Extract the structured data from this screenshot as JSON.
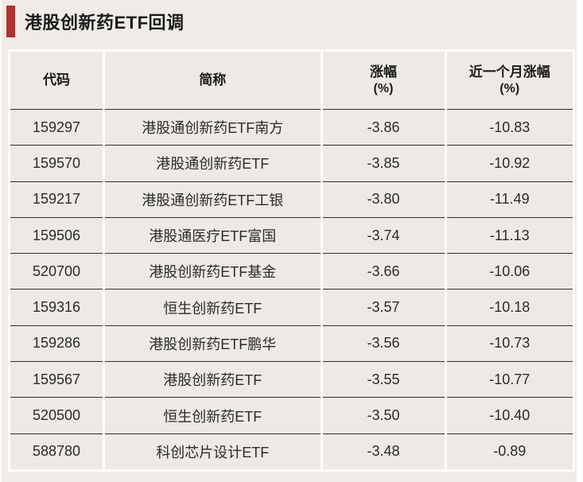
{
  "title": "港股创新药ETF回调",
  "colors": {
    "accent_bar": "#b0342f",
    "page_background": "#efece8",
    "cell_background": "#edeae6",
    "gutter_white": "#fcfcfa",
    "row_separator": "#2f2d2a",
    "title_text": "#1a1a1a",
    "cell_text": "#2b2b2b"
  },
  "table": {
    "headers": [
      {
        "label": "代码",
        "unit": ""
      },
      {
        "label": "简称",
        "unit": ""
      },
      {
        "label": "涨幅",
        "unit": "(%)"
      },
      {
        "label": "近一个月涨幅",
        "unit": "(%)"
      }
    ],
    "rows": [
      {
        "code": "159297",
        "name": "港股通创新药ETF南方",
        "change": "-3.86",
        "month_change": "-10.83"
      },
      {
        "code": "159570",
        "name": "港股通创新药ETF",
        "change": "-3.85",
        "month_change": "-10.92"
      },
      {
        "code": "159217",
        "name": "港股通创新药ETF工银",
        "change": "-3.80",
        "month_change": "-11.49"
      },
      {
        "code": "159506",
        "name": "港股通医疗ETF富国",
        "change": "-3.74",
        "month_change": "-11.13"
      },
      {
        "code": "520700",
        "name": "港股创新药ETF基金",
        "change": "-3.66",
        "month_change": "-10.06"
      },
      {
        "code": "159316",
        "name": "恒生创新药ETF",
        "change": "-3.57",
        "month_change": "-10.18"
      },
      {
        "code": "159286",
        "name": "港股创新药ETF鹏华",
        "change": "-3.56",
        "month_change": "-10.73"
      },
      {
        "code": "159567",
        "name": "港股创新药ETF",
        "change": "-3.55",
        "month_change": "-10.77"
      },
      {
        "code": "520500",
        "name": "恒生创新药ETF",
        "change": "-3.50",
        "month_change": "-10.40"
      },
      {
        "code": "588780",
        "name": "科创芯片设计ETF",
        "change": "-3.48",
        "month_change": "-0.89"
      }
    ]
  },
  "chart_data": {
    "type": "table",
    "title": "港股创新药ETF回调",
    "columns": [
      "代码",
      "简称",
      "涨幅(%)",
      "近一个月涨幅(%)"
    ],
    "rows": [
      [
        "159297",
        "港股通创新药ETF南方",
        -3.86,
        -10.83
      ],
      [
        "159570",
        "港股通创新药ETF",
        -3.85,
        -10.92
      ],
      [
        "159217",
        "港股通创新药ETF工银",
        -3.8,
        -11.49
      ],
      [
        "159506",
        "港股通医疗ETF富国",
        -3.74,
        -11.13
      ],
      [
        "520700",
        "港股创新药ETF基金",
        -3.66,
        -10.06
      ],
      [
        "159316",
        "恒生创新药ETF",
        -3.57,
        -10.18
      ],
      [
        "159286",
        "港股创新药ETF鹏华",
        -3.56,
        -10.73
      ],
      [
        "159567",
        "港股创新药ETF",
        -3.55,
        -10.77
      ],
      [
        "520500",
        "恒生创新药ETF",
        -3.5,
        -10.4
      ],
      [
        "588780",
        "科创芯片设计ETF",
        -3.48,
        -0.89
      ]
    ]
  }
}
